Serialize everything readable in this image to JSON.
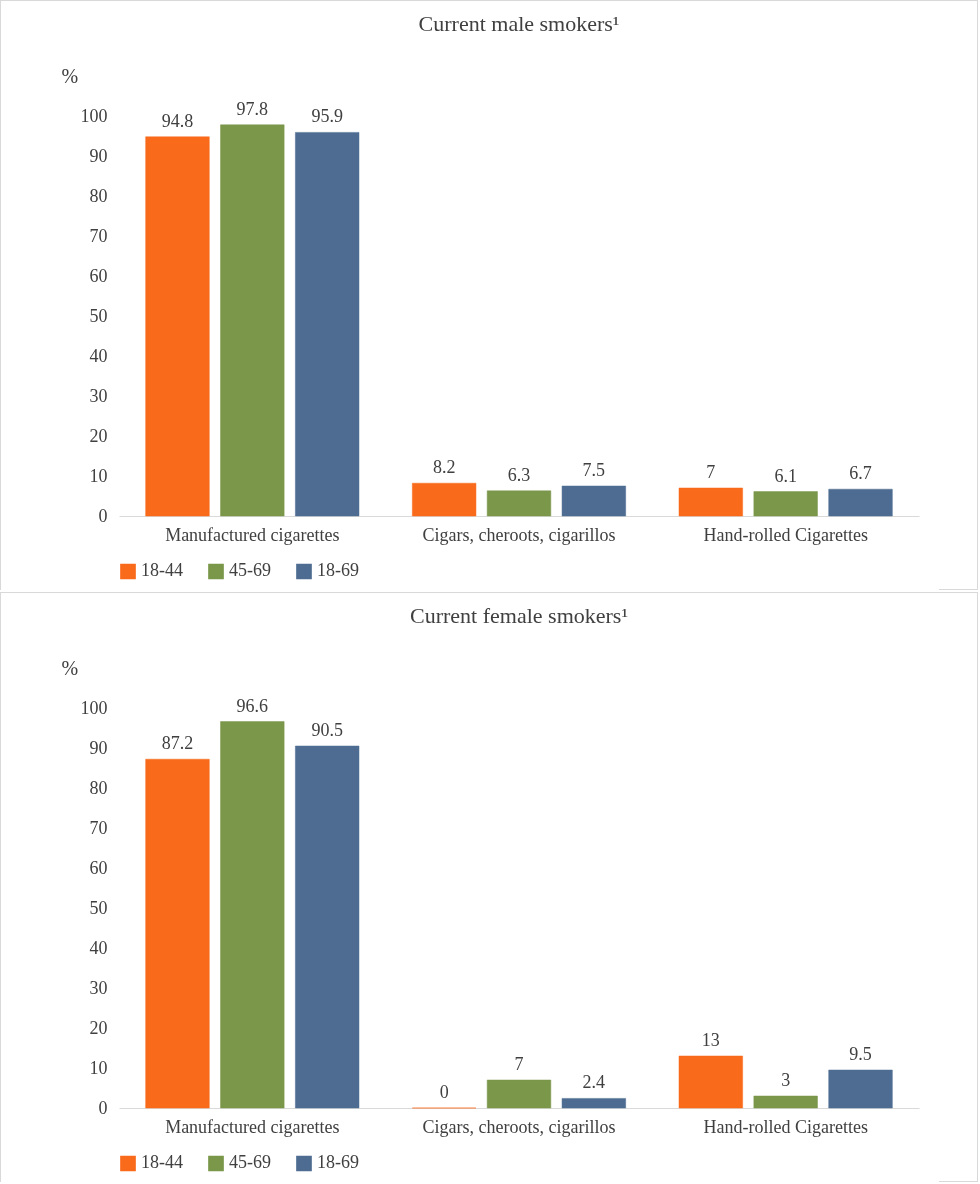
{
  "chart_data": [
    {
      "type": "bar",
      "title": "Current male smokers¹",
      "ylabel": "%",
      "categories": [
        "Manufactured cigarettes",
        "Cigars, cheroots, cigarillos",
        "Hand-rolled Cigarettes"
      ],
      "series": [
        {
          "name": "18-44",
          "color": "#f96a1b",
          "values": [
            94.8,
            8.2,
            7
          ]
        },
        {
          "name": "45-69",
          "color": "#7a974a",
          "values": [
            97.8,
            6.3,
            6.1
          ]
        },
        {
          "name": "18-69",
          "color": "#4e6c91",
          "values": [
            95.9,
            7.5,
            6.7
          ]
        }
      ],
      "ylim": [
        0,
        100
      ],
      "yticks": [
        0,
        10,
        20,
        30,
        40,
        50,
        60,
        70,
        80,
        90,
        100
      ],
      "data_labels": true,
      "legend": "bottom",
      "grid": false
    },
    {
      "type": "bar",
      "title": "Current female smokers¹",
      "ylabel": "%",
      "categories": [
        "Manufactured cigarettes",
        "Cigars, cheroots, cigarillos",
        "Hand-rolled Cigarettes"
      ],
      "series": [
        {
          "name": "18-44",
          "color": "#f96a1b",
          "values": [
            87.2,
            0,
            13
          ]
        },
        {
          "name": "45-69",
          "color": "#7a974a",
          "values": [
            96.6,
            7,
            3
          ]
        },
        {
          "name": "18-69",
          "color": "#4e6c91",
          "values": [
            90.5,
            2.4,
            9.5
          ]
        }
      ],
      "ylim": [
        0,
        100
      ],
      "yticks": [
        0,
        10,
        20,
        30,
        40,
        50,
        60,
        70,
        80,
        90,
        100
      ],
      "data_labels": true,
      "legend": "bottom",
      "grid": false
    }
  ]
}
